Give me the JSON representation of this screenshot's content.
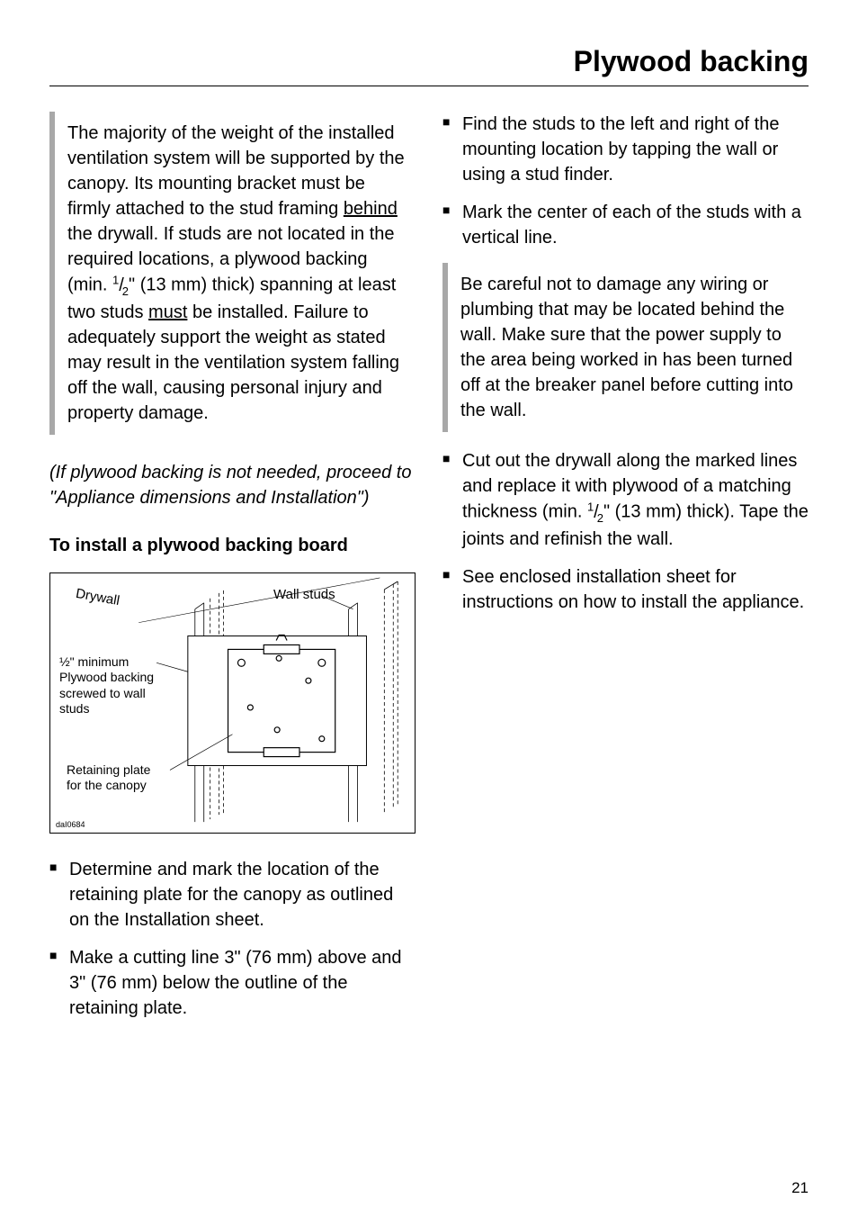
{
  "title": "Plywood backing",
  "warning_box": "The majority of the weight of the installed ventilation system will be supported by the canopy. Its mounting bracket must be firmly attached to the stud framing <span class=\"underline\">behind</span> the drywall. If studs are not located in the required locations, a plywood backing (min. <span class=\"frac\"><sup>1</sup>/<sub>2</sub></span>\" (13 mm) thick) spanning at least two studs <span class=\"underline\">must</span> be installed. Failure to adequately support the weight as stated may result in the ventilation system falling off the wall, causing personal injury and property damage.",
  "note": "(If plywood backing is not needed, proceed to \"Appliance dimensions and Installation\")",
  "heading": "To install a plywood backing board",
  "diagram": {
    "label_drywall": "Drywall",
    "label_studs": "Wall studs",
    "label_plywood_l1": "½\" minimum",
    "label_plywood_l2": "Plywood backing",
    "label_plywood_l3": "screwed to wall",
    "label_plywood_l4": "studs",
    "label_plate_l1": "Retaining plate",
    "label_plate_l2": "for the canopy",
    "caption_id": "daI0684"
  },
  "left_bullets": [
    "Determine and mark the location of the retaining plate for the canopy as outlined on the Installation sheet.",
    "Make a cutting line 3\" (76 mm) above and 3\" (76 mm) below the outline of the retaining plate."
  ],
  "right_bullets_1": [
    "Find the studs to the left and right of the mounting location by tapping the wall or using a stud finder.",
    "Mark the center of each of the studs with a vertical line."
  ],
  "caution_box": "Be careful not to damage any wiring or plumbing that may be located behind the wall. Make sure that the power supply to the area being worked in has been turned off at the breaker panel before cutting into the wall.",
  "right_bullets_2": [
    "Cut out the drywall along the marked lines and replace it with plywood of a matching thickness (min. <span class=\"frac\"><sup>1</sup>/<sub>2</sub></span>\" (13 mm) thick). Tape the joints and refinish the wall.",
    "See enclosed installation sheet for instructions on how to install the appliance."
  ],
  "page_number": "21"
}
